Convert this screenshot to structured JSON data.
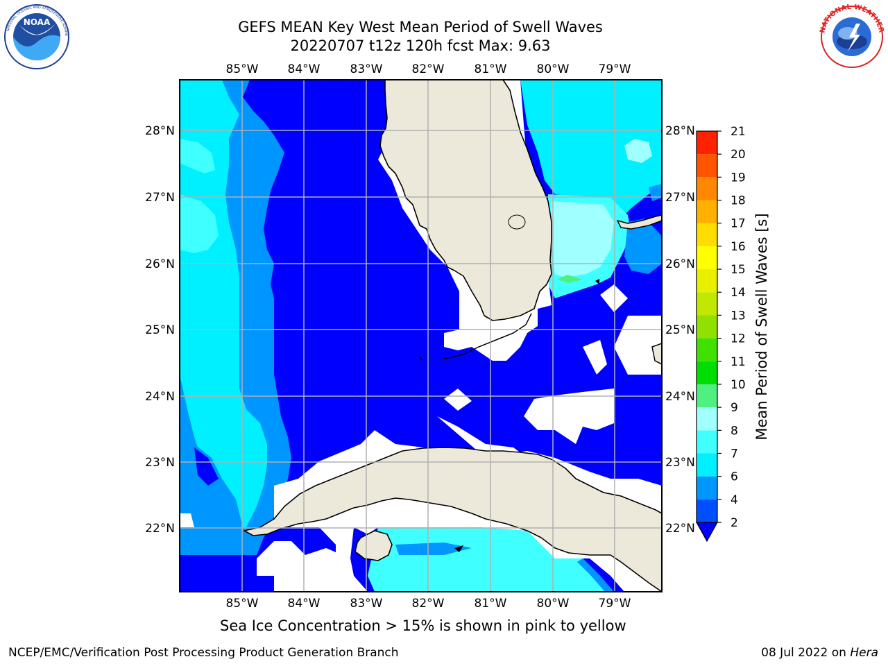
{
  "title": {
    "line1": "GEFS MEAN Key West Mean Period of Swell Waves",
    "line2": "20220707 t12z 120h fcst   Max: 9.63"
  },
  "logos": {
    "left": "noaa-logo",
    "right": "nws-logo"
  },
  "map": {
    "lon_labels": [
      "85°W",
      "84°W",
      "83°W",
      "82°W",
      "81°W",
      "80°W",
      "79°W"
    ],
    "lat_labels": [
      "28°N",
      "27°N",
      "26°N",
      "25°N",
      "24°N",
      "23°N",
      "22°N"
    ],
    "land_color": "#ece9da",
    "grid_color": "#b0b0b0",
    "regions": [
      "Florida",
      "Cuba",
      "Gulf of Mexico",
      "Florida Straits"
    ]
  },
  "colorbar": {
    "label": "Mean Period of Swell Waves [s]",
    "ticks": [
      "2",
      "4",
      "6",
      "7",
      "8",
      "9",
      "10",
      "11",
      "12",
      "13",
      "14",
      "15",
      "16",
      "17",
      "18",
      "19",
      "20",
      "21"
    ],
    "colors": [
      "#0050ff",
      "#0096ff",
      "#00f0ff",
      "#40ffff",
      "#a0ffff",
      "#50f080",
      "#00dd00",
      "#40e000",
      "#90e000",
      "#c0e800",
      "#e8f000",
      "#ffff00",
      "#ffdd00",
      "#ffb000",
      "#ff8800",
      "#ff5500",
      "#ff2200",
      "#ff0000"
    ],
    "extend_color": "#0000ff"
  },
  "caption": "Sea Ice Concentration > 15% is shown in pink to yellow",
  "footer": {
    "left": "NCEP/EMC/Verification Post Processing Product Generation Branch",
    "right_prefix": "08 Jul 2022 on ",
    "right_host": "Hera"
  }
}
